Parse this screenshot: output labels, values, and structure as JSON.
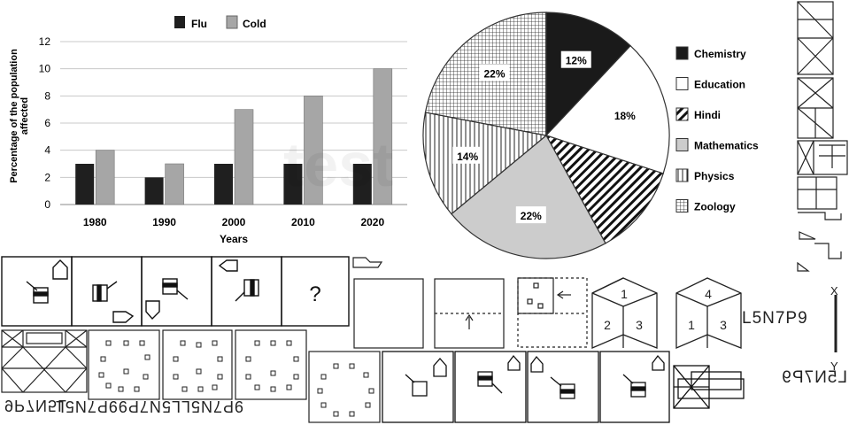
{
  "chart_data": [
    {
      "type": "bar",
      "categories": [
        "1980",
        "1990",
        "2000",
        "2010",
        "2020"
      ],
      "series": [
        {
          "name": "Flu",
          "values": [
            3,
            2,
            3,
            3,
            3
          ],
          "color": "#1f1f1f"
        },
        {
          "name": "Cold",
          "values": [
            4,
            3,
            7,
            8,
            10
          ],
          "color": "#a6a6a6"
        }
      ],
      "xlabel": "Years",
      "ylabel": "Percentage of the population affected",
      "ylim": [
        0,
        12
      ],
      "yticks": [
        "0",
        "2",
        "4",
        "6",
        "8",
        "10",
        "12"
      ],
      "grid": true,
      "legend_position": "top"
    },
    {
      "type": "pie",
      "slices": [
        {
          "name": "Chemistry",
          "value": 12,
          "label": "12%",
          "pattern": "solid-black"
        },
        {
          "name": "Education",
          "value": 18,
          "label": "18%",
          "pattern": "white"
        },
        {
          "name": "Hindi",
          "value": 12,
          "label": "",
          "pattern": "diagonal-hatch"
        },
        {
          "name": "Mathematics",
          "value": 22,
          "label": "22%",
          "pattern": "light-gray"
        },
        {
          "name": "Physics",
          "value": 14,
          "label": "14%",
          "pattern": "vertical-lines"
        },
        {
          "name": "Zoology",
          "value": 22,
          "label": "22%",
          "pattern": "grid"
        }
      ],
      "legend_position": "right"
    }
  ],
  "puzzle": {
    "question_mark": "?",
    "cube1_faces": [
      "1",
      "2",
      "3"
    ],
    "cube2_faces": [
      "4",
      "1",
      "3"
    ],
    "text_original": "L5N7P9",
    "text_mirror_right": "L5N7P9",
    "text_mirror_bottom": "9P7N5L",
    "text_options": "9P7N5LL5N7P99P7N5L",
    "axis_x": "X",
    "axis_y": "Y"
  }
}
